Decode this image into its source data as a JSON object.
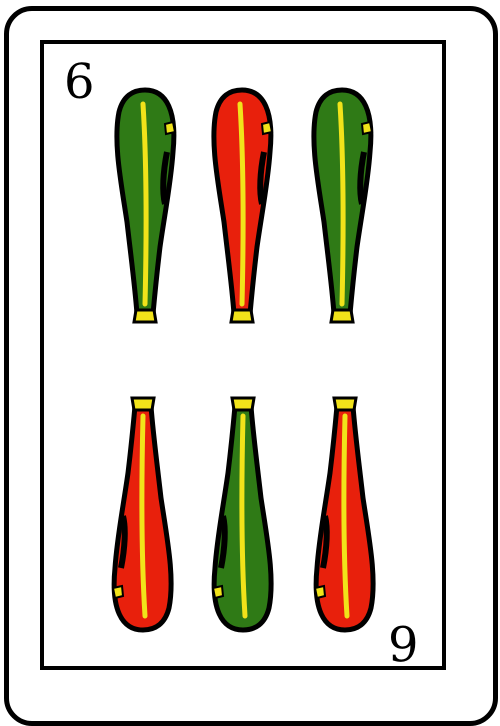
{
  "card": {
    "rank_top": "6",
    "rank_bottom": "6",
    "suit": "bastos",
    "colors": {
      "green": "#2f7a16",
      "red": "#e8200c",
      "yellow": "#f1e31a",
      "outline": "#000000"
    },
    "clubs": [
      {
        "color": "green"
      },
      {
        "color": "red"
      },
      {
        "color": "green"
      },
      {
        "color": "red"
      },
      {
        "color": "green"
      },
      {
        "color": "red"
      }
    ]
  }
}
